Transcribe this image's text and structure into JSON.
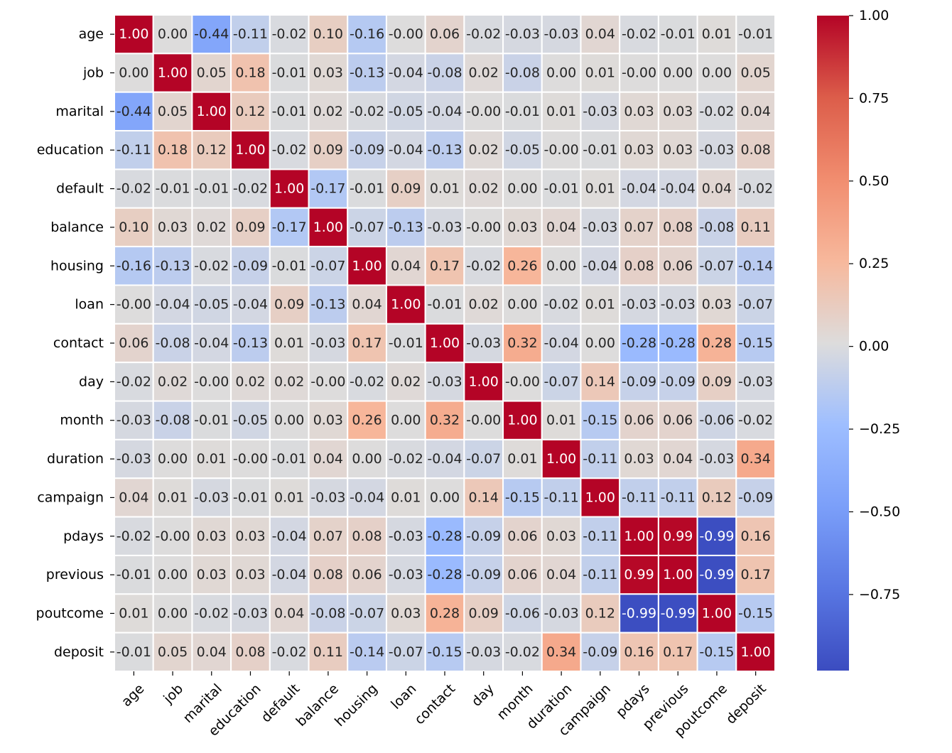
{
  "chart_data": {
    "type": "heatmap",
    "title": "",
    "xlabel": "",
    "ylabel": "",
    "colormap": "coolwarm",
    "colorbar": {
      "vmin": -1,
      "vmax": 1,
      "ticks": [
        "1.00",
        "0.75",
        "0.50",
        "0.25",
        "0.00",
        "−0.25",
        "−0.50",
        "−0.75"
      ],
      "tick_values": [
        1.0,
        0.75,
        0.5,
        0.25,
        0.0,
        -0.25,
        -0.5,
        -0.75
      ]
    },
    "annotate": true,
    "value_format": "0.00",
    "grid": false,
    "cell_separators": "white",
    "labels": [
      "age",
      "job",
      "marital",
      "education",
      "default",
      "balance",
      "housing",
      "loan",
      "contact",
      "day",
      "month",
      "duration",
      "campaign",
      "pdays",
      "previous",
      "poutcome",
      "deposit"
    ],
    "matrix": [
      [
        1.0,
        0.0,
        -0.44,
        -0.11,
        -0.02,
        0.1,
        -0.16,
        -0.0,
        0.06,
        -0.02,
        -0.03,
        -0.03,
        0.04,
        -0.02,
        -0.01,
        0.01,
        -0.01
      ],
      [
        0.0,
        1.0,
        0.05,
        0.18,
        -0.01,
        0.03,
        -0.13,
        -0.04,
        -0.08,
        0.02,
        -0.08,
        0.0,
        0.01,
        -0.0,
        0.0,
        0.0,
        0.05
      ],
      [
        -0.44,
        0.05,
        1.0,
        0.12,
        -0.01,
        0.02,
        -0.02,
        -0.05,
        -0.04,
        -0.0,
        -0.01,
        0.01,
        -0.03,
        0.03,
        0.03,
        -0.02,
        0.04
      ],
      [
        -0.11,
        0.18,
        0.12,
        1.0,
        -0.02,
        0.09,
        -0.09,
        -0.04,
        -0.13,
        0.02,
        -0.05,
        -0.0,
        -0.01,
        0.03,
        0.03,
        -0.03,
        0.08
      ],
      [
        -0.02,
        -0.01,
        -0.01,
        -0.02,
        1.0,
        -0.17,
        -0.01,
        0.09,
        0.01,
        0.02,
        0.0,
        -0.01,
        0.01,
        -0.04,
        -0.04,
        0.04,
        -0.02
      ],
      [
        0.1,
        0.03,
        0.02,
        0.09,
        -0.17,
        1.0,
        -0.07,
        -0.13,
        -0.03,
        -0.0,
        0.03,
        0.04,
        -0.03,
        0.07,
        0.08,
        -0.08,
        0.11
      ],
      [
        -0.16,
        -0.13,
        -0.02,
        -0.09,
        -0.01,
        -0.07,
        1.0,
        0.04,
        0.17,
        -0.02,
        0.26,
        0.0,
        -0.04,
        0.08,
        0.06,
        -0.07,
        -0.14
      ],
      [
        -0.0,
        -0.04,
        -0.05,
        -0.04,
        0.09,
        -0.13,
        0.04,
        1.0,
        -0.01,
        0.02,
        0.0,
        -0.02,
        0.01,
        -0.03,
        -0.03,
        0.03,
        -0.07
      ],
      [
        0.06,
        -0.08,
        -0.04,
        -0.13,
        0.01,
        -0.03,
        0.17,
        -0.01,
        1.0,
        -0.03,
        0.32,
        -0.04,
        0.0,
        -0.28,
        -0.28,
        0.28,
        -0.15
      ],
      [
        -0.02,
        0.02,
        -0.0,
        0.02,
        0.02,
        -0.0,
        -0.02,
        0.02,
        -0.03,
        1.0,
        -0.0,
        -0.07,
        0.14,
        -0.09,
        -0.09,
        0.09,
        -0.03
      ],
      [
        -0.03,
        -0.08,
        -0.01,
        -0.05,
        0.0,
        0.03,
        0.26,
        0.0,
        0.32,
        -0.0,
        1.0,
        0.01,
        -0.15,
        0.06,
        0.06,
        -0.06,
        -0.02
      ],
      [
        -0.03,
        0.0,
        0.01,
        -0.0,
        -0.01,
        0.04,
        0.0,
        -0.02,
        -0.04,
        -0.07,
        0.01,
        1.0,
        -0.11,
        0.03,
        0.04,
        -0.03,
        0.34
      ],
      [
        0.04,
        0.01,
        -0.03,
        -0.01,
        0.01,
        -0.03,
        -0.04,
        0.01,
        0.0,
        0.14,
        -0.15,
        -0.11,
        1.0,
        -0.11,
        -0.11,
        0.12,
        -0.09
      ],
      [
        -0.02,
        -0.0,
        0.03,
        0.03,
        -0.04,
        0.07,
        0.08,
        -0.03,
        -0.28,
        -0.09,
        0.06,
        0.03,
        -0.11,
        1.0,
        0.99,
        -0.99,
        0.16
      ],
      [
        -0.01,
        0.0,
        0.03,
        0.03,
        -0.04,
        0.08,
        0.06,
        -0.03,
        -0.28,
        -0.09,
        0.06,
        0.04,
        -0.11,
        0.99,
        1.0,
        -0.99,
        0.17
      ],
      [
        0.01,
        0.0,
        -0.02,
        -0.03,
        0.04,
        -0.08,
        -0.07,
        0.03,
        0.28,
        0.09,
        -0.06,
        -0.03,
        0.12,
        -0.99,
        -0.99,
        1.0,
        -0.15
      ],
      [
        -0.01,
        0.05,
        0.04,
        0.08,
        -0.02,
        0.11,
        -0.14,
        -0.07,
        -0.15,
        -0.03,
        -0.02,
        0.34,
        -0.09,
        0.16,
        0.17,
        -0.15,
        1.0
      ]
    ]
  }
}
